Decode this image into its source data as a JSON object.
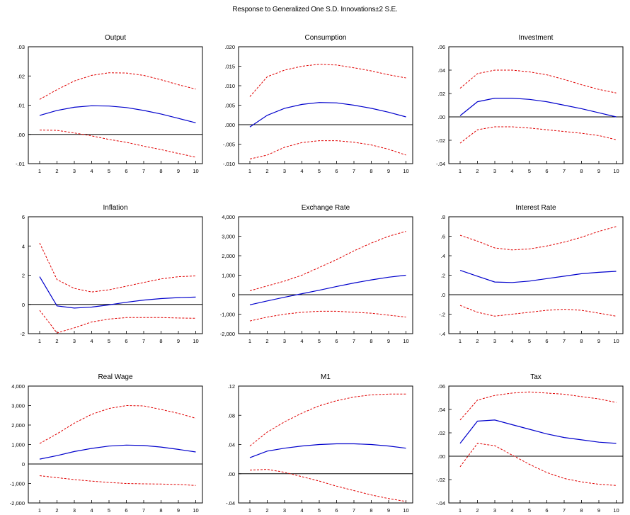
{
  "figure": {
    "title": "Response to Generalized One S.D. Innovations±2 S.E."
  },
  "colors": {
    "response": "#0000cc",
    "bands": "#e00000",
    "zero_line": "#000000",
    "frame": "#000000"
  },
  "chart_data": [
    {
      "type": "line",
      "title": "Output",
      "x": [
        1,
        2,
        3,
        4,
        5,
        6,
        7,
        8,
        9,
        10
      ],
      "ylim": [
        -0.01,
        0.03
      ],
      "yticks": [
        -0.01,
        0.0,
        0.01,
        0.02,
        0.03
      ],
      "yticklabels": [
        "-.01",
        ".00",
        ".01",
        ".02",
        ".03"
      ],
      "series": [
        {
          "role": "response",
          "values": [
            0.0065,
            0.0082,
            0.0093,
            0.0098,
            0.0097,
            0.0092,
            0.0082,
            0.007,
            0.0055,
            0.004
          ]
        },
        {
          "role": "upper",
          "values": [
            0.012,
            0.0153,
            0.0183,
            0.0202,
            0.0211,
            0.021,
            0.0202,
            0.0187,
            0.017,
            0.0155
          ]
        },
        {
          "role": "lower",
          "values": [
            0.0015,
            0.0014,
            0.0005,
            -0.0005,
            -0.0017,
            -0.0027,
            -0.004,
            -0.0052,
            -0.0065,
            -0.0078
          ]
        }
      ]
    },
    {
      "type": "line",
      "title": "Consumption",
      "x": [
        1,
        2,
        3,
        4,
        5,
        6,
        7,
        8,
        9,
        10
      ],
      "ylim": [
        -0.01,
        0.02
      ],
      "yticks": [
        -0.01,
        -0.005,
        0.0,
        0.005,
        0.01,
        0.015,
        0.02
      ],
      "yticklabels": [
        "-.010",
        "-.005",
        ".000",
        ".005",
        ".010",
        ".015",
        ".020"
      ],
      "series": [
        {
          "role": "response",
          "values": [
            -0.0006,
            0.0024,
            0.0042,
            0.0052,
            0.0057,
            0.0056,
            0.005,
            0.0042,
            0.0032,
            0.002
          ]
        },
        {
          "role": "upper",
          "values": [
            0.0072,
            0.0123,
            0.014,
            0.015,
            0.0155,
            0.0153,
            0.0146,
            0.0138,
            0.0128,
            0.012
          ]
        },
        {
          "role": "lower",
          "values": [
            -0.0088,
            -0.0078,
            -0.0058,
            -0.0046,
            -0.0041,
            -0.0041,
            -0.0045,
            -0.0052,
            -0.0063,
            -0.0078
          ]
        }
      ]
    },
    {
      "type": "line",
      "title": "Investment",
      "x": [
        1,
        2,
        3,
        4,
        5,
        6,
        7,
        8,
        9,
        10
      ],
      "ylim": [
        -0.04,
        0.06
      ],
      "yticks": [
        -0.04,
        -0.02,
        0.0,
        0.02,
        0.04,
        0.06
      ],
      "yticklabels": [
        "-.04",
        "-.02",
        ".00",
        ".02",
        ".04",
        ".06"
      ],
      "series": [
        {
          "role": "response",
          "values": [
            0.001,
            0.013,
            0.016,
            0.016,
            0.015,
            0.013,
            0.01,
            0.007,
            0.0035,
            0.0
          ]
        },
        {
          "role": "upper",
          "values": [
            0.0245,
            0.037,
            0.04,
            0.04,
            0.0385,
            0.036,
            0.032,
            0.0275,
            0.0235,
            0.0205
          ]
        },
        {
          "role": "lower",
          "values": [
            -0.0225,
            -0.011,
            -0.0085,
            -0.0085,
            -0.0095,
            -0.011,
            -0.0125,
            -0.014,
            -0.016,
            -0.0195
          ]
        }
      ]
    },
    {
      "type": "line",
      "title": "Inflation",
      "x": [
        1,
        2,
        3,
        4,
        5,
        6,
        7,
        8,
        9,
        10
      ],
      "ylim": [
        -2,
        6
      ],
      "yticks": [
        -2,
        0,
        2,
        4,
        6
      ],
      "yticklabels": [
        "-2",
        "0",
        "2",
        "4",
        "6"
      ],
      "series": [
        {
          "role": "response",
          "values": [
            1.9,
            -0.1,
            -0.25,
            -0.18,
            -0.03,
            0.15,
            0.3,
            0.4,
            0.47,
            0.5
          ]
        },
        {
          "role": "upper",
          "values": [
            4.2,
            1.7,
            1.1,
            0.85,
            1.0,
            1.25,
            1.5,
            1.75,
            1.9,
            1.95
          ]
        },
        {
          "role": "lower",
          "values": [
            -0.4,
            -1.95,
            -1.6,
            -1.2,
            -1.0,
            -0.9,
            -0.9,
            -0.9,
            -0.93,
            -0.95
          ]
        }
      ]
    },
    {
      "type": "line",
      "title": "Exchange Rate",
      "x": [
        1,
        2,
        3,
        4,
        5,
        6,
        7,
        8,
        9,
        10
      ],
      "ylim": [
        -2000,
        4000
      ],
      "yticks": [
        -2000,
        -1000,
        0,
        1000,
        2000,
        3000,
        4000
      ],
      "yticklabels": [
        "-2,000",
        "-1,000",
        "0",
        "1,000",
        "2,000",
        "3,000",
        "4,000"
      ],
      "series": [
        {
          "role": "response",
          "values": [
            -520,
            -320,
            -130,
            50,
            230,
            420,
            600,
            760,
            900,
            1000
          ]
        },
        {
          "role": "upper",
          "values": [
            200,
            450,
            700,
            1000,
            1400,
            1800,
            2250,
            2650,
            3000,
            3250
          ]
        },
        {
          "role": "lower",
          "values": [
            -1350,
            -1150,
            -1000,
            -900,
            -850,
            -850,
            -900,
            -950,
            -1050,
            -1150
          ]
        }
      ]
    },
    {
      "type": "line",
      "title": "Interest Rate",
      "x": [
        1,
        2,
        3,
        4,
        5,
        6,
        7,
        8,
        9,
        10
      ],
      "ylim": [
        -0.4,
        0.8
      ],
      "yticks": [
        -0.4,
        -0.2,
        0.0,
        0.2,
        0.4,
        0.6,
        0.8
      ],
      "yticklabels": [
        "-.4",
        "-.2",
        ".0",
        ".2",
        ".4",
        ".6",
        ".8"
      ],
      "series": [
        {
          "role": "response",
          "values": [
            0.25,
            0.19,
            0.13,
            0.125,
            0.14,
            0.165,
            0.19,
            0.215,
            0.23,
            0.24
          ]
        },
        {
          "role": "upper",
          "values": [
            0.61,
            0.55,
            0.48,
            0.46,
            0.47,
            0.5,
            0.54,
            0.59,
            0.65,
            0.7
          ]
        },
        {
          "role": "lower",
          "values": [
            -0.11,
            -0.18,
            -0.22,
            -0.2,
            -0.18,
            -0.16,
            -0.15,
            -0.16,
            -0.19,
            -0.22
          ]
        }
      ]
    },
    {
      "type": "line",
      "title": "Real Wage",
      "x": [
        1,
        2,
        3,
        4,
        5,
        6,
        7,
        8,
        9,
        10
      ],
      "ylim": [
        -2000,
        4000
      ],
      "yticks": [
        -2000,
        -1000,
        0,
        1000,
        2000,
        3000,
        4000
      ],
      "yticklabels": [
        "-2,000",
        "-1,000",
        "0",
        "1,000",
        "2,000",
        "3,000",
        "4,000"
      ],
      "series": [
        {
          "role": "response",
          "values": [
            250,
            430,
            640,
            800,
            920,
            970,
            950,
            870,
            750,
            620
          ]
        },
        {
          "role": "upper",
          "values": [
            1050,
            1550,
            2100,
            2550,
            2850,
            3000,
            2980,
            2800,
            2600,
            2350
          ]
        },
        {
          "role": "lower",
          "values": [
            -600,
            -700,
            -800,
            -880,
            -950,
            -1000,
            -1020,
            -1030,
            -1050,
            -1100
          ]
        }
      ]
    },
    {
      "type": "line",
      "title": "M1",
      "x": [
        1,
        2,
        3,
        4,
        5,
        6,
        7,
        8,
        9,
        10
      ],
      "ylim": [
        -0.04,
        0.12
      ],
      "yticks": [
        -0.04,
        0.0,
        0.04,
        0.08,
        0.12
      ],
      "yticklabels": [
        "-.04",
        ".00",
        ".04",
        ".08",
        ".12"
      ],
      "series": [
        {
          "role": "response",
          "values": [
            0.022,
            0.031,
            0.035,
            0.038,
            0.04,
            0.041,
            0.041,
            0.04,
            0.038,
            0.035
          ]
        },
        {
          "role": "upper",
          "values": [
            0.038,
            0.057,
            0.071,
            0.083,
            0.093,
            0.1,
            0.105,
            0.108,
            0.109,
            0.109
          ]
        },
        {
          "role": "lower",
          "values": [
            0.005,
            0.006,
            0.002,
            -0.004,
            -0.01,
            -0.017,
            -0.023,
            -0.029,
            -0.034,
            -0.038
          ]
        }
      ]
    },
    {
      "type": "line",
      "title": "Tax",
      "x": [
        1,
        2,
        3,
        4,
        5,
        6,
        7,
        8,
        9,
        10
      ],
      "ylim": [
        -0.04,
        0.06
      ],
      "yticks": [
        -0.04,
        -0.02,
        0.0,
        0.02,
        0.04,
        0.06
      ],
      "yticklabels": [
        "-.04",
        "-.02",
        ".00",
        ".02",
        ".04",
        ".06"
      ],
      "series": [
        {
          "role": "response",
          "values": [
            0.011,
            0.03,
            0.031,
            0.027,
            0.023,
            0.019,
            0.016,
            0.014,
            0.012,
            0.011
          ]
        },
        {
          "role": "upper",
          "values": [
            0.031,
            0.048,
            0.052,
            0.054,
            0.055,
            0.054,
            0.053,
            0.051,
            0.049,
            0.046
          ]
        },
        {
          "role": "lower",
          "values": [
            -0.009,
            0.011,
            0.009,
            0.001,
            -0.007,
            -0.014,
            -0.019,
            -0.022,
            -0.024,
            -0.025
          ]
        }
      ]
    }
  ]
}
